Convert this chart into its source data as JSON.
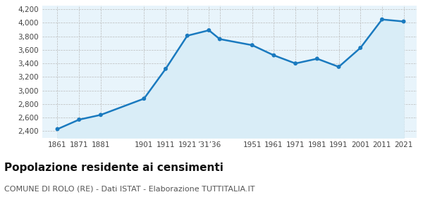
{
  "years": [
    1861,
    1871,
    1881,
    1901,
    1911,
    1921,
    1931,
    1936,
    1951,
    1961,
    1971,
    1981,
    1991,
    2001,
    2011,
    2021
  ],
  "population": [
    2430,
    2570,
    2640,
    2880,
    3320,
    3810,
    3890,
    3760,
    3670,
    3520,
    3400,
    3470,
    3350,
    3630,
    4050,
    4020
  ],
  "xtick_labels": [
    "1861",
    "1871",
    "1881",
    "1901",
    "1911",
    "1921",
    "’31’36",
    "",
    "1951",
    "1961",
    "1971",
    "1981",
    "1991",
    "2001",
    "2011",
    "2021"
  ],
  "ylim": [
    2300,
    4250
  ],
  "yticks": [
    2400,
    2600,
    2800,
    3000,
    3200,
    3400,
    3600,
    3800,
    4000,
    4200
  ],
  "ytick_labels": [
    "2,400",
    "2,600",
    "2,800",
    "3,000",
    "3,200",
    "3,400",
    "3,600",
    "3,800",
    "4,000",
    "4,200"
  ],
  "line_color": "#1a7abf",
  "fill_color": "#d9edf7",
  "marker_color": "#1a7abf",
  "bg_color": "#ffffff",
  "plot_bg_color": "#e8f4fb",
  "grid_color": "#bbbbbb",
  "title": "Popolazione residente ai censimenti",
  "subtitle": "COMUNE DI ROLO (RE) - Dati ISTAT - Elaborazione TUTTITALIA.IT",
  "title_fontsize": 11,
  "subtitle_fontsize": 8,
  "xlim_left": 1854,
  "xlim_right": 2027
}
